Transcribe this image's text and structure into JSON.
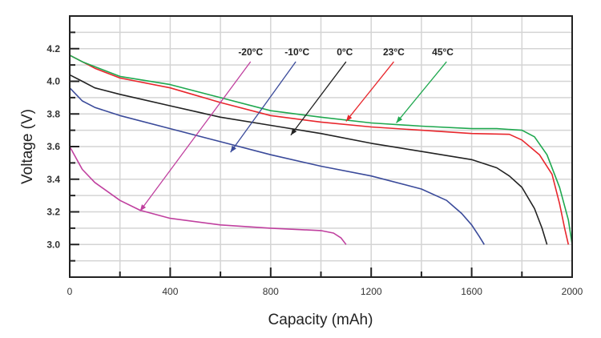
{
  "chart_data": {
    "type": "line",
    "title": "",
    "xlabel": "Capacity (mAh)",
    "ylabel": "Voltage (V)",
    "xlim": [
      0,
      2000
    ],
    "ylim": [
      2.8,
      4.4
    ],
    "xticks": [
      0,
      400,
      800,
      1200,
      1600,
      2000
    ],
    "xtick_labels": [
      "0",
      "400",
      "800",
      "1200",
      "1600",
      "2000"
    ],
    "x_minor_step": 200,
    "yticks": [
      3.0,
      3.2,
      3.4,
      3.6,
      3.8,
      4.0,
      4.2
    ],
    "ytick_labels": [
      "3.0",
      "3.2",
      "3.4",
      "3.6",
      "3.8",
      "4.0",
      "4.2"
    ],
    "y_minor_step": 0.1,
    "grid": true,
    "legend": "inline annotations with arrows",
    "series": [
      {
        "name": "-20°C",
        "color": "#c0409f",
        "x": [
          0,
          50,
          100,
          200,
          280,
          400,
          600,
          800,
          1000,
          1050,
          1080,
          1100
        ],
        "y": [
          3.6,
          3.46,
          3.38,
          3.27,
          3.21,
          3.16,
          3.12,
          3.1,
          3.085,
          3.07,
          3.04,
          3.0
        ],
        "annotation": {
          "label": "-20°C",
          "label_at": [
            720,
            4.16
          ],
          "arrow_from": [
            720,
            4.12
          ],
          "arrow_to": [
            280,
            3.205
          ]
        }
      },
      {
        "name": "-10°C",
        "color": "#3a4a9a",
        "x": [
          0,
          50,
          100,
          200,
          400,
          600,
          800,
          1000,
          1200,
          1400,
          1500,
          1560,
          1600,
          1630,
          1650
        ],
        "y": [
          3.96,
          3.88,
          3.84,
          3.79,
          3.71,
          3.63,
          3.55,
          3.48,
          3.42,
          3.34,
          3.27,
          3.19,
          3.12,
          3.05,
          3.0
        ],
        "annotation": {
          "label": "-10°C",
          "label_at": [
            905,
            4.16
          ],
          "arrow_from": [
            900,
            4.12
          ],
          "arrow_to": [
            640,
            3.565
          ]
        }
      },
      {
        "name": "0°C",
        "color": "#222222",
        "x": [
          0,
          50,
          100,
          200,
          400,
          600,
          800,
          1000,
          1200,
          1400,
          1600,
          1700,
          1750,
          1800,
          1850,
          1880,
          1900
        ],
        "y": [
          4.04,
          4.0,
          3.96,
          3.92,
          3.85,
          3.78,
          3.73,
          3.68,
          3.62,
          3.57,
          3.52,
          3.47,
          3.42,
          3.35,
          3.22,
          3.1,
          3.0
        ],
        "annotation": {
          "label": "0°C",
          "label_at": [
            1095,
            4.16
          ],
          "arrow_from": [
            1100,
            4.12
          ],
          "arrow_to": [
            880,
            3.67
          ]
        }
      },
      {
        "name": "23°C",
        "color": "#e8262c",
        "x": [
          0,
          50,
          100,
          200,
          400,
          600,
          800,
          1000,
          1200,
          1400,
          1600,
          1750,
          1800,
          1870,
          1920,
          1950,
          1970,
          1985
        ],
        "y": [
          4.16,
          4.12,
          4.08,
          4.02,
          3.96,
          3.87,
          3.79,
          3.75,
          3.72,
          3.7,
          3.68,
          3.675,
          3.64,
          3.55,
          3.43,
          3.25,
          3.1,
          3.0
        ],
        "annotation": {
          "label": "23°C",
          "label_at": [
            1290,
            4.16
          ],
          "arrow_from": [
            1290,
            4.12
          ],
          "arrow_to": [
            1100,
            3.755
          ]
        }
      },
      {
        "name": "45°C",
        "color": "#1fa84f",
        "x": [
          0,
          50,
          100,
          200,
          400,
          600,
          800,
          1000,
          1200,
          1400,
          1600,
          1700,
          1800,
          1850,
          1900,
          1950,
          1985,
          2000
        ],
        "y": [
          4.16,
          4.12,
          4.09,
          4.03,
          3.98,
          3.9,
          3.82,
          3.78,
          3.745,
          3.725,
          3.71,
          3.71,
          3.7,
          3.66,
          3.55,
          3.35,
          3.15,
          3.0
        ],
        "annotation": {
          "label": "45°C",
          "label_at": [
            1485,
            4.16
          ],
          "arrow_from": [
            1500,
            4.12
          ],
          "arrow_to": [
            1300,
            3.745
          ]
        }
      }
    ]
  }
}
